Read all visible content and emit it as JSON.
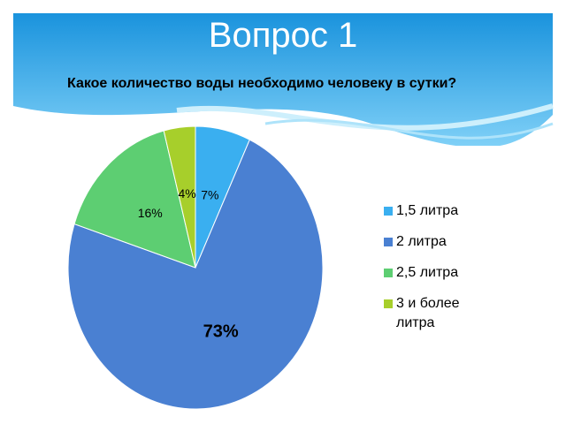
{
  "chart_data": {
    "type": "pie",
    "title": "Вопрос 1",
    "subtitle": "Какое количество воды необходимо человеку в сутки?",
    "categories": [
      "1,5 литра",
      "2 литра",
      "2,5 литра",
      "3 и более литра"
    ],
    "values": [
      7,
      73,
      16,
      4
    ],
    "value_labels": [
      "7%",
      "73%",
      "16%",
      "4%"
    ],
    "colors": [
      "#3aaff0",
      "#4a80d2",
      "#5dce72",
      "#a7cf2b"
    ],
    "legend": "right"
  }
}
